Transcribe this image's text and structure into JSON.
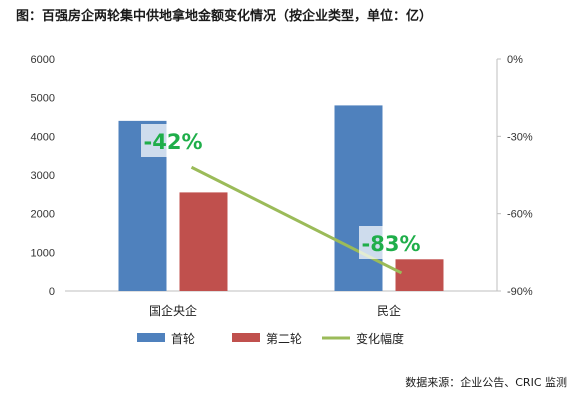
{
  "title": "图：百强房企两轮集中供地拿地金额变化情况（按企业类型，单位：亿）",
  "source": "数据来源：企业公告、CRIC 监测",
  "colors": {
    "first": "#4f81bd",
    "second": "#c0504d",
    "change": "#9bbb59",
    "anno": "#1fae4a"
  },
  "chart_data": {
    "type": "bar",
    "categories": [
      "国企央企",
      "民企"
    ],
    "series": [
      {
        "name": "首轮",
        "values": [
          4400,
          4800
        ]
      },
      {
        "name": "第二轮",
        "values": [
          2550,
          820
        ]
      }
    ],
    "line_series": {
      "name": "变化幅度",
      "values": [
        -42,
        -83
      ],
      "axis": "right"
    },
    "annotations": [
      "-42%",
      "-83%"
    ],
    "y_left": {
      "lim": [
        0,
        6000
      ],
      "ticks": [
        "0",
        "1000",
        "2000",
        "3000",
        "4000",
        "5000",
        "6000"
      ]
    },
    "y_right": {
      "lim": [
        -90,
        0
      ],
      "ticks": [
        "0%",
        "-30%",
        "-60%",
        "-90%"
      ],
      "tick_values": [
        0,
        -30,
        -60,
        -90
      ]
    },
    "legend_position": "bottom"
  }
}
